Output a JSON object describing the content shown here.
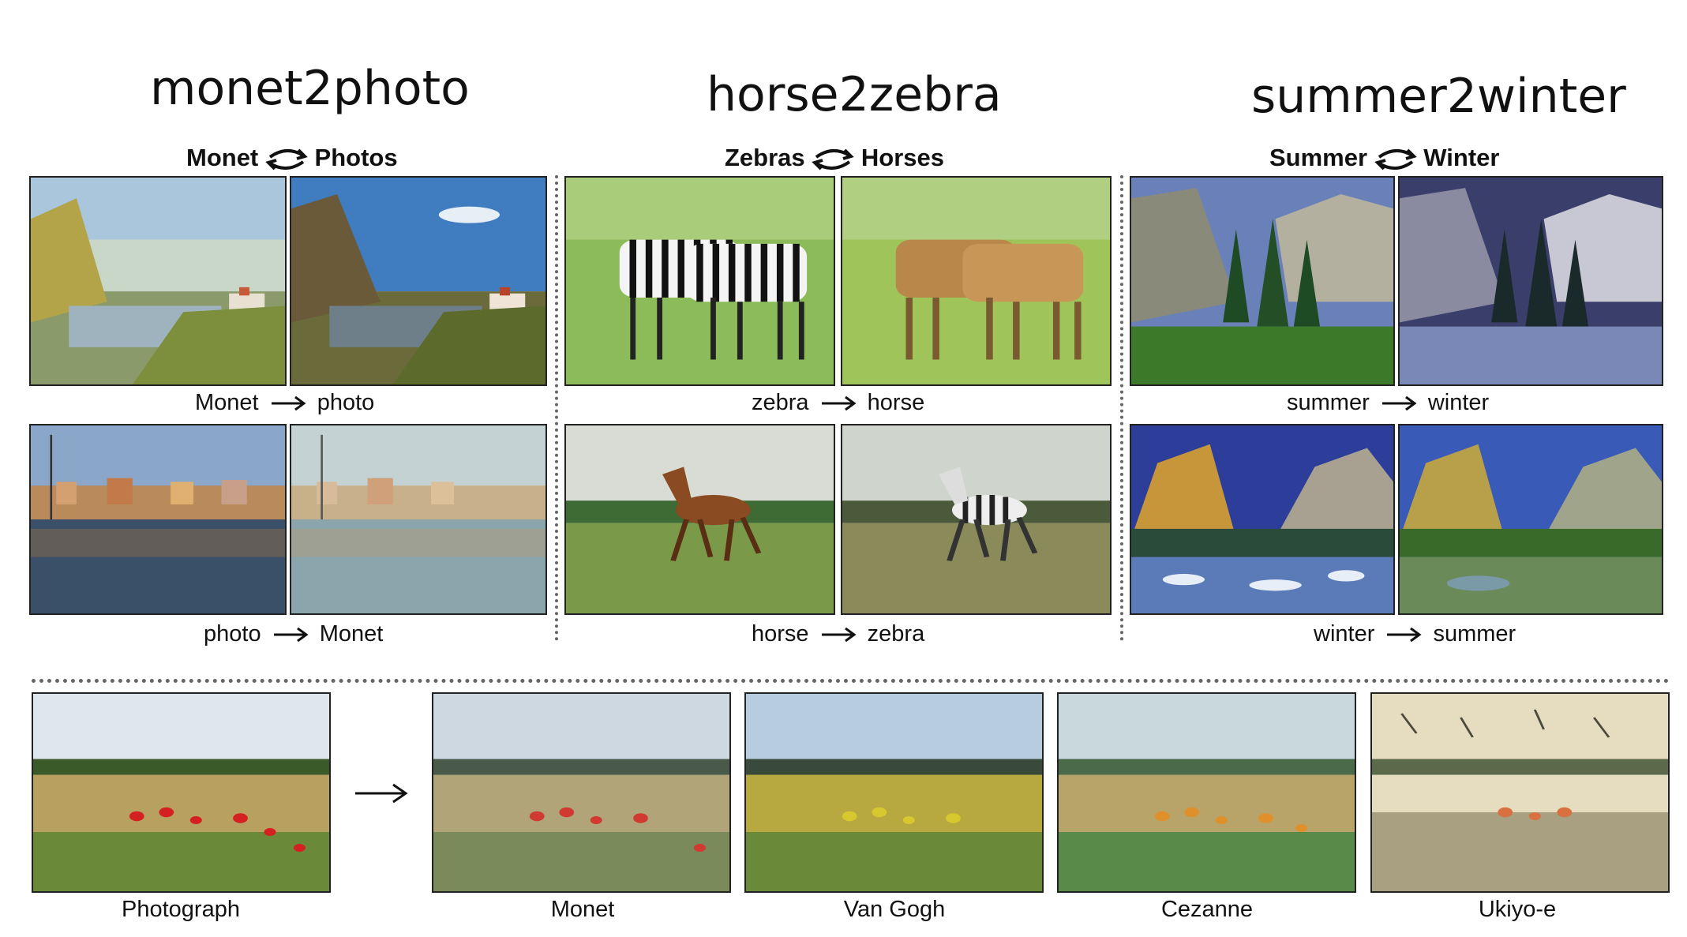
{
  "sections": [
    {
      "title": "monet2photo",
      "left": "Monet",
      "right": "Photos",
      "row1": {
        "from": "Monet",
        "to": "photo"
      },
      "row2": {
        "from": "photo",
        "to": "Monet"
      }
    },
    {
      "title": "horse2zebra",
      "left": "Zebras",
      "right": "Horses",
      "row1": {
        "from": "zebra",
        "to": "horse"
      },
      "row2": {
        "from": "horse",
        "to": "zebra"
      }
    },
    {
      "title": "summer2winter",
      "left": "Summer",
      "right": "Winter",
      "row1": {
        "from": "summer",
        "to": "winter"
      },
      "row2": {
        "from": "winter",
        "to": "summer"
      }
    }
  ],
  "bottom": {
    "source": "Photograph",
    "styles": [
      "Monet",
      "Van Gogh",
      "Cezanne",
      "Ukiyo-e"
    ]
  }
}
